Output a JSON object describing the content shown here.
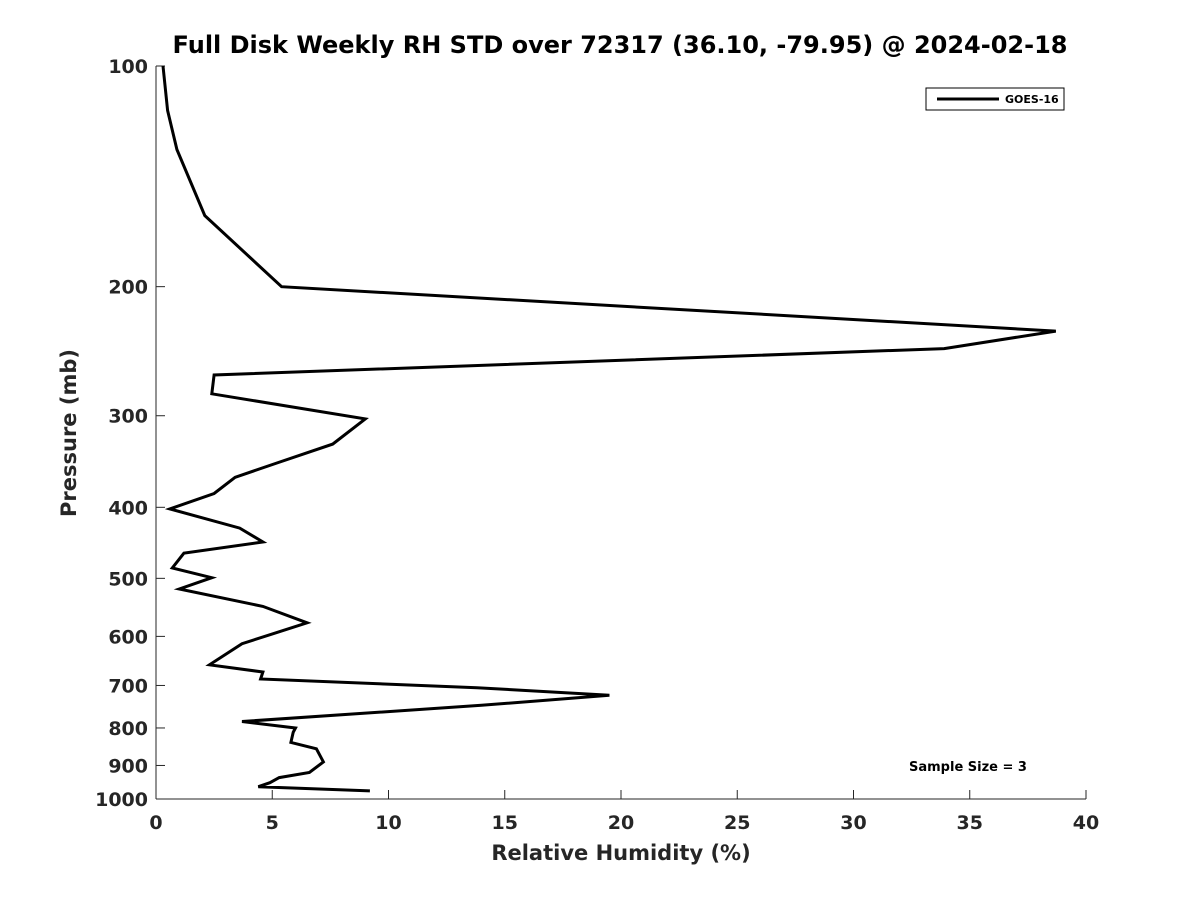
{
  "chart_data": {
    "type": "line",
    "title": "Full Disk Weekly RH STD over 72317 (36.10, -79.95) @ 2024-02-18",
    "xlabel": "Relative Humidity (%)",
    "ylabel": "Pressure (mb)",
    "xlim": [
      0,
      40
    ],
    "ylim": [
      100,
      1000
    ],
    "y_scale": "log",
    "y_reversed": true,
    "grid": false,
    "legend_position": "top-right",
    "x_ticks": [
      0,
      5,
      10,
      15,
      20,
      25,
      30,
      35,
      40
    ],
    "x_tick_labels": [
      "0",
      "5",
      "10",
      "15",
      "20",
      "25",
      "30",
      "35",
      "40"
    ],
    "y_ticks": [
      100,
      200,
      300,
      400,
      500,
      600,
      700,
      800,
      900,
      1000
    ],
    "y_tick_labels": [
      "100",
      "200",
      "300",
      "400",
      "500",
      "600",
      "700",
      "800",
      "900",
      "1000"
    ],
    "series": [
      {
        "name": "GOES-16",
        "color": "#000000",
        "x": [
          0.3,
          0.5,
          0.9,
          2.1,
          5.4,
          38.7,
          33.9,
          2.5,
          2.4,
          9.0,
          7.6,
          5.2,
          3.4,
          2.5,
          0.6,
          3.6,
          4.6,
          1.2,
          0.7,
          2.4,
          1.0,
          4.6,
          6.5,
          3.7,
          2.3,
          4.6,
          4.5,
          13.8,
          19.5,
          14.0,
          3.7,
          6.0,
          5.9,
          5.8,
          6.9,
          7.2,
          6.6,
          5.3,
          4.9,
          4.4,
          9.2
        ],
        "y": [
          100,
          115,
          130,
          160,
          200,
          230,
          243,
          264,
          280,
          303,
          328,
          348,
          364,
          383,
          402,
          427,
          446,
          462,
          484,
          499,
          517,
          546,
          575,
          614,
          656,
          671,
          686,
          705,
          722,
          745,
          784,
          800,
          811,
          837,
          854,
          890,
          920,
          935,
          950,
          962,
          975
        ]
      }
    ],
    "annotation": "Sample Size = 3"
  }
}
